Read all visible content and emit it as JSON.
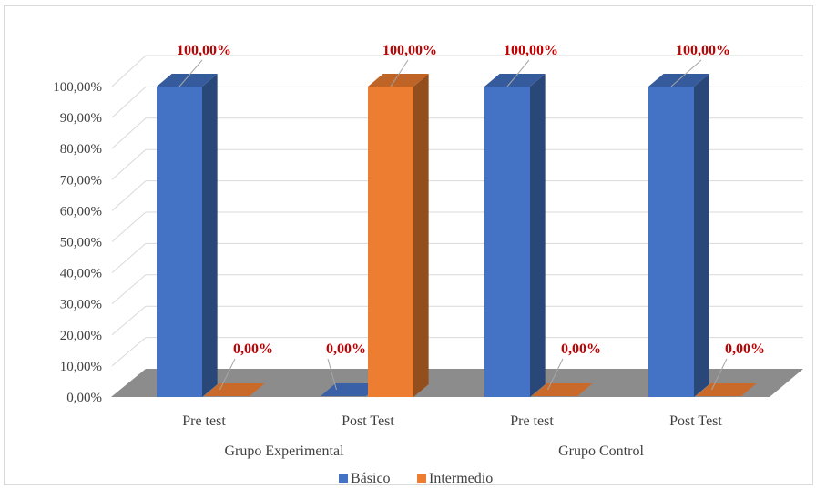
{
  "chart_data": {
    "type": "bar",
    "style": "3d-clustered-column",
    "groups": [
      "Grupo Experimental",
      "Grupo Control"
    ],
    "categories": [
      "Pre test",
      "Post Test",
      "Pre test",
      "Post Test"
    ],
    "series": [
      {
        "name": "Básico",
        "values": [
          100,
          0,
          100,
          100
        ],
        "labels": [
          "",
          "0,00%",
          "",
          ""
        ],
        "color": "#4472c4"
      },
      {
        "name": "Intermedio",
        "values": [
          0,
          100,
          0,
          0
        ],
        "labels": [
          "0,00%",
          "",
          "0,00%",
          "0,00%"
        ],
        "color": "#ed7d31"
      }
    ],
    "top_labels": [
      "100,00%",
      "100,00%",
      "100,00%",
      "100,00%"
    ],
    "yticks": [
      "0,00%",
      "10,00%",
      "20,00%",
      "30,00%",
      "40,00%",
      "50,00%",
      "60,00%",
      "70,00%",
      "80,00%",
      "90,00%",
      "100,00%"
    ],
    "ylim": [
      0,
      100
    ],
    "grid": true,
    "legend_position": "bottom",
    "label_color": "#c00000"
  }
}
